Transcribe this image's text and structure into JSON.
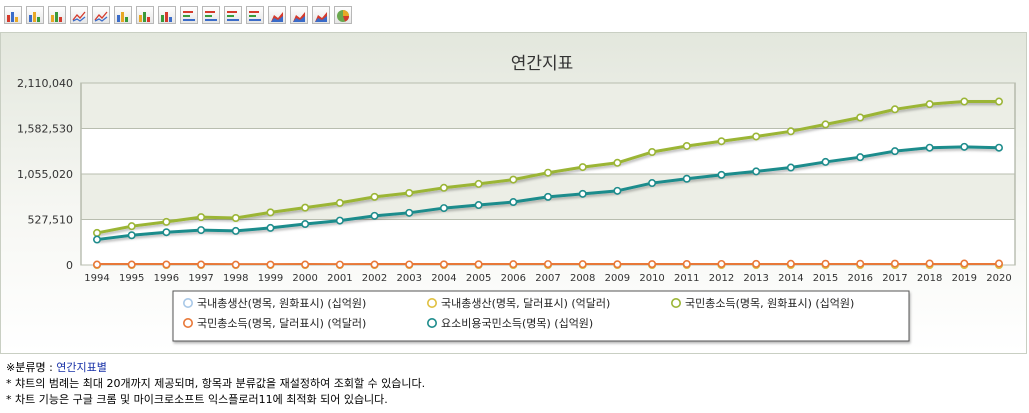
{
  "toolbar": {
    "buttons": [
      {
        "icon": "bar-chart-icon"
      },
      {
        "icon": "bar-chart-outline-icon"
      },
      {
        "icon": "clustered-bar-icon"
      },
      {
        "icon": "line-chart-icon"
      },
      {
        "icon": "line-chart-markers-icon"
      },
      {
        "icon": "stacked-bar-icon"
      },
      {
        "icon": "stacked-bar-100-icon"
      },
      {
        "icon": "column-3d-icon"
      },
      {
        "icon": "horizontal-bar-icon"
      },
      {
        "icon": "horizontal-bar-clustered-icon"
      },
      {
        "icon": "horizontal-stacked-bar-icon"
      },
      {
        "icon": "horizontal-stacked-100-icon"
      },
      {
        "icon": "area-chart-icon"
      },
      {
        "icon": "stacked-area-icon"
      },
      {
        "icon": "area-100-icon"
      },
      {
        "icon": "pie-chart-icon"
      }
    ]
  },
  "chart_data": {
    "type": "line",
    "title": "연간지표",
    "xlabel": "",
    "ylabel": "",
    "x": [
      "1994",
      "1995",
      "1996",
      "1997",
      "1998",
      "1999",
      "2000",
      "2001",
      "2002",
      "2003",
      "2004",
      "2005",
      "2006",
      "2007",
      "2008",
      "2009",
      "2010",
      "2011",
      "2012",
      "2013",
      "2014",
      "2015",
      "2016",
      "2017",
      "2018",
      "2019",
      "2020"
    ],
    "y_ticks": [
      "0",
      "527,510",
      "1,055,020",
      "1,582,530",
      "2,110,040"
    ],
    "ylim": [
      0,
      2110040
    ],
    "grid": true,
    "legend_position": "bottom",
    "series": [
      {
        "name": "국내총생산(명목, 원화표시) (십억원)",
        "color": "#a8c8e8",
        "values": [
          0,
          0,
          0,
          0,
          0,
          0,
          0,
          0,
          0,
          0,
          0,
          0,
          0,
          0,
          0,
          0,
          0,
          0,
          0,
          0,
          0,
          0,
          0,
          0,
          0,
          0,
          0
        ]
      },
      {
        "name": "국내총생산(명목, 달러표시) (억달러)",
        "color": "#e0c040",
        "values": [
          0,
          0,
          0,
          0,
          0,
          0,
          0,
          0,
          0,
          0,
          0,
          0,
          0,
          0,
          0,
          0,
          0,
          0,
          0,
          0,
          0,
          0,
          0,
          0,
          0,
          0,
          0
        ]
      },
      {
        "name": "국민총소득(명목, 원화표시) (십억원)",
        "color": "#9bb536",
        "values": [
          372000,
          450000,
          500000,
          555000,
          545000,
          610000,
          665000,
          720000,
          790000,
          835000,
          895000,
          940000,
          990000,
          1070000,
          1135000,
          1185000,
          1310000,
          1380000,
          1435000,
          1490000,
          1550000,
          1630000,
          1710000,
          1805000,
          1865000,
          1895000,
          1895000
        ]
      },
      {
        "name": "국민총소득(명목, 달러표시) (억달러)",
        "color": "#e87838",
        "values": [
          5200,
          5600,
          5900,
          5600,
          3800,
          4600,
          5300,
          5000,
          5600,
          6400,
          7400,
          8600,
          9700,
          10800,
          9600,
          8600,
          10300,
          11700,
          12300,
          13200,
          14200,
          14600,
          14900,
          16200,
          17300,
          16900,
          16700
        ]
      },
      {
        "name": "요소비용국민소득(명목) (십억원)",
        "color": "#1e8c8c",
        "values": [
          295000,
          345000,
          380000,
          405000,
          395000,
          430000,
          475000,
          515000,
          570000,
          605000,
          660000,
          695000,
          730000,
          790000,
          825000,
          860000,
          950000,
          1000000,
          1045000,
          1085000,
          1130000,
          1195000,
          1250000,
          1320000,
          1360000,
          1370000,
          1360000
        ]
      }
    ]
  },
  "notes": {
    "category_prefix": "※분류명 : ",
    "category_name": "연간지표별",
    "line2": "* 챠트의 범례는 최대 20개까지 제공되며, 항목과 분류값을 재설정하여 조회할 수 있습니다.",
    "line3": "* 차트 기능은 구글 크롬 및 마이크로소프트 익스플로러11에 최적화 되어 있습니다."
  }
}
